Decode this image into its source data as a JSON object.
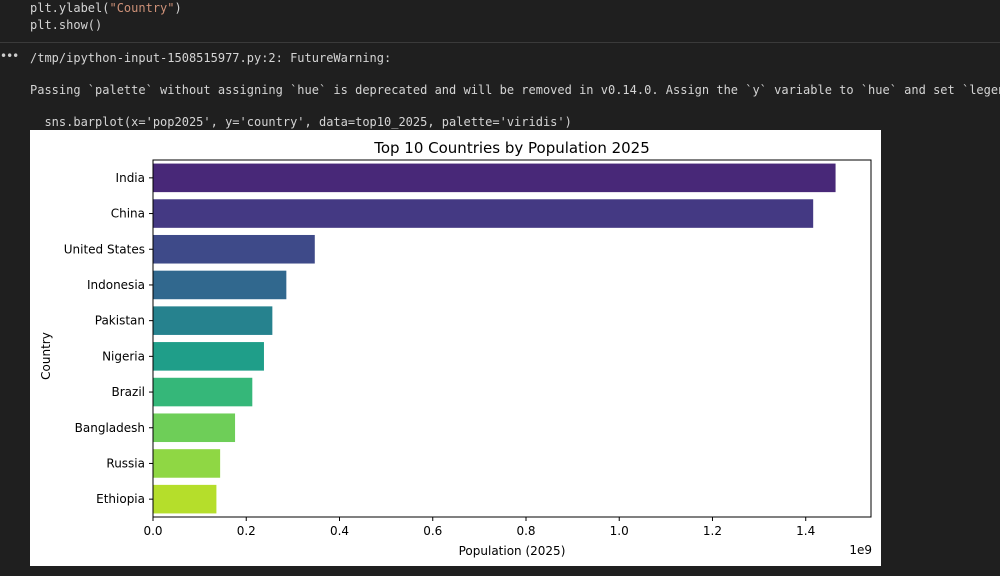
{
  "code": {
    "lines": [
      {
        "prefix": "plt.ylabel(",
        "string": "\"Country\"",
        "suffix": ")"
      },
      {
        "prefix": "plt.show()",
        "string": "",
        "suffix": ""
      }
    ]
  },
  "output": {
    "menu_glyph": "•••",
    "warning_header": "/tmp/ipython-input-1508515977.py:2: FutureWarning:",
    "warning_message": "Passing `palette` without assigning `hue` is deprecated and will be removed in v0.14.0. Assign the `y` variable to `hue` and set `legend",
    "warning_code": "  sns.barplot(x='pop2025', y='country', data=top10_2025, palette='viridis')"
  },
  "chart_data": {
    "type": "bar",
    "orientation": "horizontal",
    "title": "Top 10 Countries by Population 2025",
    "xlabel": "Population (2025)",
    "ylabel": "Country",
    "x_offset_label": "1e9",
    "xlim": [
      0,
      1.54
    ],
    "xticks": [
      "0.0",
      "0.2",
      "0.4",
      "0.6",
      "0.8",
      "1.0",
      "1.2",
      "1.4"
    ],
    "categories": [
      "India",
      "China",
      "United States",
      "Indonesia",
      "Pakistan",
      "Nigeria",
      "Brazil",
      "Bangladesh",
      "Russia",
      "Ethiopia"
    ],
    "values": [
      1.464,
      1.416,
      0.347,
      0.286,
      0.256,
      0.238,
      0.213,
      0.176,
      0.144,
      0.136
    ],
    "colors": [
      "#482878",
      "#443983",
      "#3e4a89",
      "#31688e",
      "#26828e",
      "#1f9e89",
      "#35b779",
      "#6ece58",
      "#8fd744",
      "#b5de2b"
    ],
    "grid": false,
    "legend": "none",
    "palette": "viridis"
  }
}
